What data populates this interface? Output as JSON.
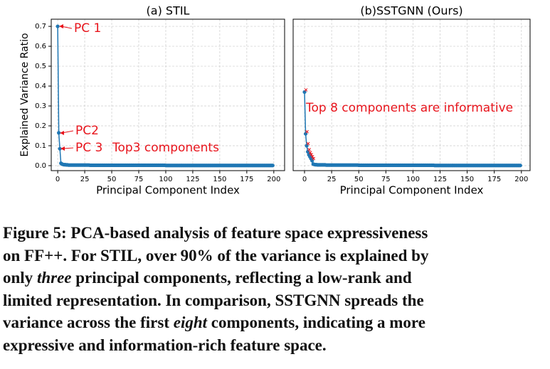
{
  "chart_data": [
    {
      "type": "line",
      "title": "(a) STIL",
      "xlabel": "Principal Component Index",
      "ylabel": "Explained Variance Ratio",
      "color": "#1f77b4",
      "grid": true,
      "xlim": [
        -6,
        210
      ],
      "ylim": [
        -0.025,
        0.736
      ],
      "xticks": [
        0,
        25,
        50,
        75,
        100,
        125,
        150,
        175,
        200
      ],
      "yticks": [
        {
          "value": 0,
          "label": "0.0"
        },
        {
          "value": 0.1,
          "label": "0.1"
        },
        {
          "value": 0.2,
          "label": "0.2"
        },
        {
          "value": 0.3,
          "label": "0.3"
        },
        {
          "value": 0.4,
          "label": "0.4"
        },
        {
          "value": 0.5,
          "label": "0.5"
        },
        {
          "value": 0.6,
          "label": "0.6"
        },
        {
          "value": 0.7,
          "label": "0.7"
        }
      ],
      "annotations": [
        "PC 1",
        "PC2",
        "PC 3",
        "Top3 components"
      ],
      "annotation_color": "#e8141c",
      "x": [
        0,
        1,
        2,
        3,
        4,
        5,
        6,
        7,
        8,
        9,
        10,
        11,
        12,
        13,
        14,
        15,
        16,
        17,
        18,
        19,
        20,
        21,
        22,
        23,
        24,
        25,
        26,
        27,
        28,
        29,
        30,
        31,
        32,
        33,
        34,
        35,
        36,
        37,
        38,
        39,
        40,
        41,
        42,
        43,
        44,
        45,
        46,
        47,
        48,
        49,
        50,
        51,
        52,
        53,
        54,
        55,
        56,
        57,
        58,
        59,
        60,
        61,
        62,
        63,
        64,
        65,
        66,
        67,
        68,
        69,
        70,
        71,
        72,
        73,
        74,
        75,
        76,
        77,
        78,
        79,
        80,
        81,
        82,
        83,
        84,
        85,
        86,
        87,
        88,
        89,
        90,
        91,
        92,
        93,
        94,
        95,
        96,
        97,
        98,
        99,
        100,
        101,
        102,
        103,
        104,
        105,
        106,
        107,
        108,
        109,
        110,
        111,
        112,
        113,
        114,
        115,
        116,
        117,
        118,
        119,
        120,
        121,
        122,
        123,
        124,
        125,
        126,
        127,
        128,
        129,
        130,
        131,
        132,
        133,
        134,
        135,
        136,
        137,
        138,
        139,
        140,
        141,
        142,
        143,
        144,
        145,
        146,
        147,
        148,
        149,
        150,
        151,
        152,
        153,
        154,
        155,
        156,
        157,
        158,
        159,
        160,
        161,
        162,
        163,
        164,
        165,
        166,
        167,
        168,
        169,
        170,
        171,
        172,
        173,
        174,
        175,
        176,
        177,
        178,
        179,
        180,
        181,
        182,
        183,
        184,
        185,
        186,
        187,
        188,
        189,
        190,
        191,
        192,
        193,
        194,
        195,
        196,
        197,
        198,
        199
      ],
      "values": [
        0.7,
        0.165,
        0.085,
        0.012,
        0.008,
        0.006,
        0.005,
        0.005,
        0.004,
        0.004,
        0.003,
        0.003,
        0.003,
        0.003,
        0.003,
        0.003,
        0.003,
        0.003,
        0.003,
        0.003,
        0.003,
        0.003,
        0.003,
        0.003,
        0.003,
        0.003,
        0.003,
        0.003,
        0.003,
        0.003,
        0.002,
        0.002,
        0.002,
        0.002,
        0.002,
        0.002,
        0.002,
        0.002,
        0.002,
        0.002,
        0.002,
        0.002,
        0.002,
        0.002,
        0.002,
        0.002,
        0.002,
        0.002,
        0.002,
        0.002,
        0.002,
        0.002,
        0.002,
        0.002,
        0.002,
        0.002,
        0.002,
        0.002,
        0.002,
        0.002,
        0.002,
        0.002,
        0.002,
        0.002,
        0.002,
        0.002,
        0.002,
        0.002,
        0.002,
        0.002,
        0.002,
        0.002,
        0.002,
        0.002,
        0.002,
        0.002,
        0.002,
        0.002,
        0.002,
        0.002,
        0.002,
        0.002,
        0.002,
        0.002,
        0.002,
        0.002,
        0.002,
        0.002,
        0.002,
        0.002,
        0.002,
        0.002,
        0.002,
        0.002,
        0.002,
        0.002,
        0.002,
        0.002,
        0.002,
        0.002,
        0.001,
        0.001,
        0.001,
        0.001,
        0.001,
        0.001,
        0.001,
        0.001,
        0.001,
        0.001,
        0.001,
        0.001,
        0.001,
        0.001,
        0.001,
        0.001,
        0.001,
        0.001,
        0.001,
        0.001,
        0.001,
        0.001,
        0.001,
        0.001,
        0.001,
        0.001,
        0.001,
        0.001,
        0.001,
        0.001,
        0.001,
        0.001,
        0.001,
        0.001,
        0.001,
        0.001,
        0.001,
        0.001,
        0.001,
        0.001,
        0.001,
        0.001,
        0.001,
        0.001,
        0.001,
        0.001,
        0.001,
        0.001,
        0.001,
        0.001,
        0.001,
        0.001,
        0.001,
        0.001,
        0.001,
        0.001,
        0.001,
        0.001,
        0.001,
        0.001,
        0.001,
        0.001,
        0.001,
        0.001,
        0.001,
        0.001,
        0.001,
        0.001,
        0.001,
        0.001,
        0.001,
        0.001,
        0.001,
        0.001,
        0.001,
        0.001,
        0.001,
        0.001,
        0.001,
        0.001,
        0.001,
        0.001,
        0.001,
        0.001,
        0.001,
        0.001,
        0.001,
        0.001,
        0.001,
        0.001,
        0.001,
        0.001,
        0.001,
        0.001,
        0.001,
        0.001,
        0.001,
        0.001,
        0.001,
        0.001
      ]
    },
    {
      "type": "line",
      "title": "(b)SSTGNN (Ours)",
      "xlabel": "Principal Component Index",
      "color": "#1f77b4",
      "grid": true,
      "sharey": true,
      "xlim": [
        -10.5,
        208
      ],
      "ylim": [
        -0.025,
        0.736
      ],
      "xticks": [
        0,
        25,
        50,
        75,
        100,
        125,
        150,
        175,
        200
      ],
      "annotations": [
        "Top 8 components are informative"
      ],
      "annotation_color": "#e8141c",
      "highlight_count": 8,
      "x": [
        0,
        1,
        2,
        3,
        4,
        5,
        6,
        7,
        8,
        9,
        10,
        11,
        12,
        13,
        14,
        15,
        16,
        17,
        18,
        19,
        20,
        21,
        22,
        23,
        24,
        25,
        26,
        27,
        28,
        29,
        30,
        31,
        32,
        33,
        34,
        35,
        36,
        37,
        38,
        39,
        40,
        41,
        42,
        43,
        44,
        45,
        46,
        47,
        48,
        49,
        50,
        51,
        52,
        53,
        54,
        55,
        56,
        57,
        58,
        59,
        60,
        61,
        62,
        63,
        64,
        65,
        66,
        67,
        68,
        69,
        70,
        71,
        72,
        73,
        74,
        75,
        76,
        77,
        78,
        79,
        80,
        81,
        82,
        83,
        84,
        85,
        86,
        87,
        88,
        89,
        90,
        91,
        92,
        93,
        94,
        95,
        96,
        97,
        98,
        99,
        100,
        101,
        102,
        103,
        104,
        105,
        106,
        107,
        108,
        109,
        110,
        111,
        112,
        113,
        114,
        115,
        116,
        117,
        118,
        119,
        120,
        121,
        122,
        123,
        124,
        125,
        126,
        127,
        128,
        129,
        130,
        131,
        132,
        133,
        134,
        135,
        136,
        137,
        138,
        139,
        140,
        141,
        142,
        143,
        144,
        145,
        146,
        147,
        148,
        149,
        150,
        151,
        152,
        153,
        154,
        155,
        156,
        157,
        158,
        159,
        160,
        161,
        162,
        163,
        164,
        165,
        166,
        167,
        168,
        169,
        170,
        171,
        172,
        173,
        174,
        175,
        176,
        177,
        178,
        179,
        180,
        181,
        182,
        183,
        184,
        185,
        186,
        187,
        188,
        189,
        190,
        191,
        192,
        193,
        194,
        195,
        196,
        197,
        198,
        199
      ],
      "values": [
        0.37,
        0.16,
        0.1,
        0.07,
        0.055,
        0.045,
        0.035,
        0.025,
        0.008,
        0.006,
        0.005,
        0.005,
        0.004,
        0.004,
        0.004,
        0.004,
        0.004,
        0.004,
        0.004,
        0.004,
        0.003,
        0.003,
        0.003,
        0.003,
        0.003,
        0.003,
        0.003,
        0.003,
        0.003,
        0.003,
        0.003,
        0.003,
        0.003,
        0.003,
        0.003,
        0.003,
        0.003,
        0.003,
        0.003,
        0.003,
        0.003,
        0.003,
        0.003,
        0.003,
        0.003,
        0.003,
        0.003,
        0.003,
        0.003,
        0.003,
        0.002,
        0.002,
        0.002,
        0.002,
        0.002,
        0.002,
        0.002,
        0.002,
        0.002,
        0.002,
        0.002,
        0.002,
        0.002,
        0.002,
        0.002,
        0.002,
        0.002,
        0.002,
        0.002,
        0.002,
        0.002,
        0.002,
        0.002,
        0.002,
        0.002,
        0.002,
        0.002,
        0.002,
        0.002,
        0.002,
        0.002,
        0.002,
        0.002,
        0.002,
        0.002,
        0.002,
        0.002,
        0.002,
        0.002,
        0.002,
        0.002,
        0.002,
        0.002,
        0.002,
        0.002,
        0.002,
        0.002,
        0.002,
        0.002,
        0.002,
        0.002,
        0.002,
        0.002,
        0.002,
        0.002,
        0.002,
        0.002,
        0.002,
        0.002,
        0.002,
        0.002,
        0.002,
        0.002,
        0.002,
        0.002,
        0.002,
        0.002,
        0.002,
        0.002,
        0.002,
        0.001,
        0.001,
        0.001,
        0.001,
        0.001,
        0.001,
        0.001,
        0.001,
        0.001,
        0.001,
        0.001,
        0.001,
        0.001,
        0.001,
        0.001,
        0.001,
        0.001,
        0.001,
        0.001,
        0.001,
        0.001,
        0.001,
        0.001,
        0.001,
        0.001,
        0.001,
        0.001,
        0.001,
        0.001,
        0.001,
        0.001,
        0.001,
        0.001,
        0.001,
        0.001,
        0.001,
        0.001,
        0.001,
        0.001,
        0.001,
        0.001,
        0.001,
        0.001,
        0.001,
        0.001,
        0.001,
        0.001,
        0.001,
        0.001,
        0.001,
        0.001,
        0.001,
        0.001,
        0.001,
        0.001,
        0.001,
        0.001,
        0.001,
        0.001,
        0.001,
        0.001,
        0.001,
        0.001,
        0.001,
        0.001,
        0.001,
        0.001,
        0.001,
        0.001,
        0.001,
        0.001,
        0.001,
        0.001,
        0.001,
        0.001,
        0.001,
        0.001,
        0.001,
        0.001,
        0.001
      ]
    }
  ],
  "caption": {
    "lines": [
      [
        "Figure 5: PCA-based analysis of feature space expressiveness"
      ],
      [
        "on FF++. For STIL, over 90% of the variance is explained by"
      ],
      [
        "only ",
        {
          "em": "three"
        },
        " principal components, reflecting a low-rank and"
      ],
      [
        "limited representation. In comparison, SSTGNN spreads the"
      ],
      [
        "variance across the first ",
        {
          "em": "eight"
        },
        " components, indicating a more"
      ],
      [
        "expressive and information-rich feature space."
      ]
    ]
  }
}
